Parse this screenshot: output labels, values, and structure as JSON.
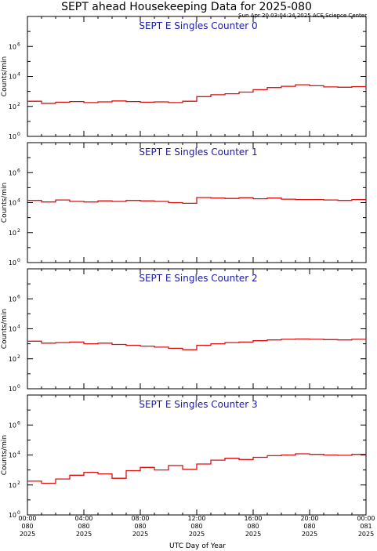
{
  "title": "SEPT ahead Housekeeping Data for 2025-080",
  "timestamp": "Sun Apr 20 03:04:24 2025 ACE Science Center",
  "xlabel": "UTC Day of Year",
  "ylabel": "Counts/min",
  "colors": {
    "series": "#dd1111",
    "panel_title": "#1a1aa6",
    "axes": "#000000"
  },
  "chart_data": [
    {
      "type": "line",
      "title": "SEPT E Singles Counter 0",
      "ylabel": "Counts/min",
      "yscale": "log",
      "ylim": [
        1,
        100000000
      ],
      "yticks": [
        {
          "base": "10",
          "exp": "0"
        },
        {
          "base": "10",
          "exp": "2"
        },
        {
          "base": "10",
          "exp": "4"
        },
        {
          "base": "10",
          "exp": "6"
        }
      ],
      "x": [
        0,
        1,
        2,
        3,
        4,
        5,
        6,
        7,
        8,
        9,
        10,
        11,
        12,
        13,
        14,
        15,
        16,
        17,
        18,
        19,
        20,
        21,
        22,
        23,
        24
      ],
      "values": [
        220,
        160,
        190,
        210,
        180,
        200,
        230,
        210,
        190,
        200,
        180,
        220,
        450,
        600,
        700,
        900,
        1300,
        1800,
        2200,
        2800,
        2400,
        2000,
        1900,
        2100,
        2000
      ]
    },
    {
      "type": "line",
      "title": "SEPT E Singles Counter 1",
      "ylabel": "Counts/min",
      "yscale": "log",
      "ylim": [
        1,
        100000000
      ],
      "yticks": [
        {
          "base": "10",
          "exp": "0"
        },
        {
          "base": "10",
          "exp": "2"
        },
        {
          "base": "10",
          "exp": "4"
        },
        {
          "base": "10",
          "exp": "6"
        }
      ],
      "x": [
        0,
        1,
        2,
        3,
        4,
        5,
        6,
        7,
        8,
        9,
        10,
        11,
        12,
        13,
        14,
        15,
        16,
        17,
        18,
        19,
        20,
        21,
        22,
        23,
        24
      ],
      "values": [
        14000,
        11000,
        15000,
        12000,
        11000,
        13000,
        12000,
        14000,
        13000,
        12000,
        10000,
        9000,
        22000,
        20000,
        19000,
        21000,
        18000,
        20000,
        17000,
        16000,
        16000,
        15000,
        14000,
        16000,
        15000
      ]
    },
    {
      "type": "line",
      "title": "SEPT E Singles Counter 2",
      "ylabel": "Counts/min",
      "yscale": "log",
      "ylim": [
        1,
        100000000
      ],
      "yticks": [
        {
          "base": "10",
          "exp": "0"
        },
        {
          "base": "10",
          "exp": "2"
        },
        {
          "base": "10",
          "exp": "4"
        },
        {
          "base": "10",
          "exp": "6"
        }
      ],
      "x": [
        0,
        1,
        2,
        3,
        4,
        5,
        6,
        7,
        8,
        9,
        10,
        11,
        12,
        13,
        14,
        15,
        16,
        17,
        18,
        19,
        20,
        21,
        22,
        23,
        24
      ],
      "values": [
        1500,
        1100,
        1200,
        1300,
        1000,
        1100,
        900,
        800,
        700,
        600,
        500,
        400,
        800,
        1000,
        1200,
        1300,
        1600,
        1800,
        2000,
        2100,
        2000,
        1900,
        1800,
        2000,
        1900
      ]
    },
    {
      "type": "line",
      "title": "SEPT E Singles Counter 3",
      "ylabel": "Counts/min",
      "yscale": "log",
      "ylim": [
        1,
        100000000
      ],
      "yticks": [
        {
          "base": "10",
          "exp": "0"
        },
        {
          "base": "10",
          "exp": "2"
        },
        {
          "base": "10",
          "exp": "4"
        },
        {
          "base": "10",
          "exp": "6"
        }
      ],
      "x": [
        0,
        1,
        2,
        3,
        4,
        5,
        6,
        7,
        8,
        9,
        10,
        11,
        12,
        13,
        14,
        15,
        16,
        17,
        18,
        19,
        20,
        21,
        22,
        23,
        24
      ],
      "values": [
        180,
        130,
        250,
        450,
        700,
        550,
        280,
        900,
        1500,
        1000,
        2000,
        1100,
        2500,
        4500,
        6000,
        5000,
        7000,
        9000,
        10000,
        12000,
        11000,
        10000,
        9500,
        11000,
        10500
      ]
    }
  ],
  "x_axis": {
    "range_hours": [
      0,
      24
    ],
    "ticks": [
      {
        "hour": 0,
        "time": "00:00",
        "day": "080",
        "year": "2025"
      },
      {
        "hour": 4,
        "time": "04:00",
        "day": "080",
        "year": "2025"
      },
      {
        "hour": 8,
        "time": "08:00",
        "day": "080",
        "year": "2025"
      },
      {
        "hour": 12,
        "time": "12:00",
        "day": "080",
        "year": "2025"
      },
      {
        "hour": 16,
        "time": "16:00",
        "day": "080",
        "year": "2025"
      },
      {
        "hour": 20,
        "time": "20:00",
        "day": "080",
        "year": "2025"
      },
      {
        "hour": 24,
        "time": "00:00",
        "day": "081",
        "year": "2025"
      }
    ]
  }
}
